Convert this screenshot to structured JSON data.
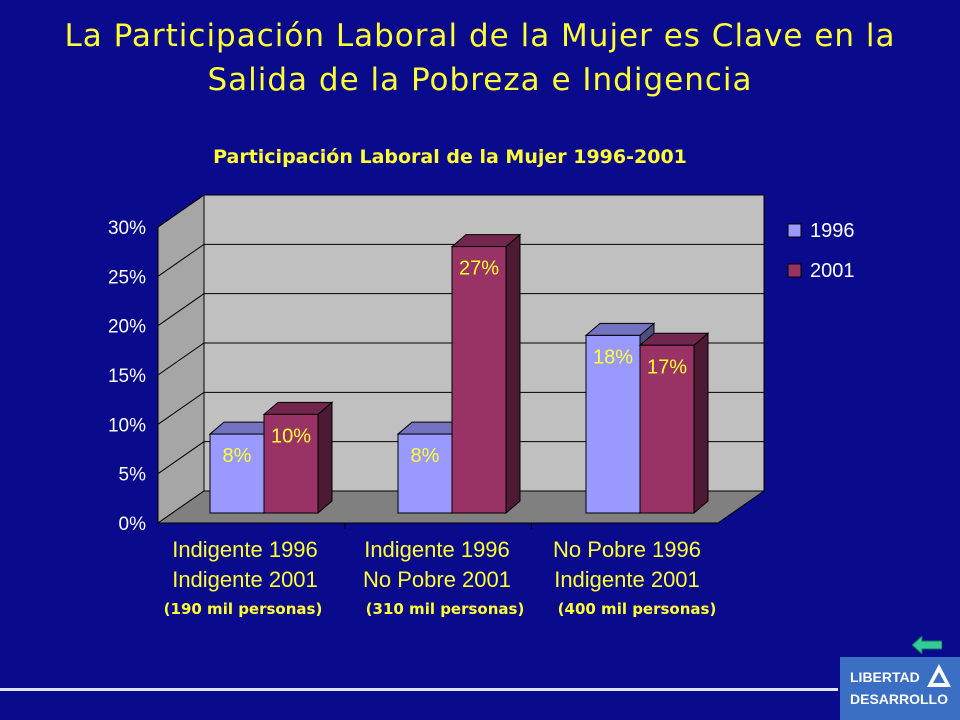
{
  "slide": {
    "title_line1": "La Participación Laboral de la Mujer es Clave en la",
    "title_line2": "Salida de la Pobreza e Indigencia",
    "logo_line1": "LIBERTAD",
    "logo_line2": "DESARROLLO"
  },
  "chart_data": {
    "type": "bar",
    "title": "Participación Laboral de la Mujer 1996-2001",
    "categories": [
      [
        "Indigente 1996",
        "Indigente 2001"
      ],
      [
        "Indigente 1996",
        "No Pobre 2001"
      ],
      [
        "No Pobre 1996",
        "Indigente 2001"
      ]
    ],
    "category_notes": [
      "(190 mil personas)",
      "(310 mil personas)",
      "(400 mil personas)"
    ],
    "series": [
      {
        "name": "1996",
        "values": [
          8,
          8,
          18
        ],
        "labels": [
          "8%",
          "8%",
          "18%"
        ],
        "color": "#9999ff"
      },
      {
        "name": "2001",
        "values": [
          10,
          27,
          17
        ],
        "labels": [
          "10%",
          "27%",
          "17%"
        ],
        "color": "#993366"
      }
    ],
    "yticks": [
      "0%",
      "5%",
      "10%",
      "15%",
      "20%",
      "25%",
      "30%"
    ],
    "ylim": [
      0,
      30
    ],
    "grid": true,
    "legend": "right",
    "colors": {
      "background": "#0a0a8c",
      "text": "#ffff33",
      "wall": "#c0c0c0",
      "floor": "#808080"
    }
  }
}
